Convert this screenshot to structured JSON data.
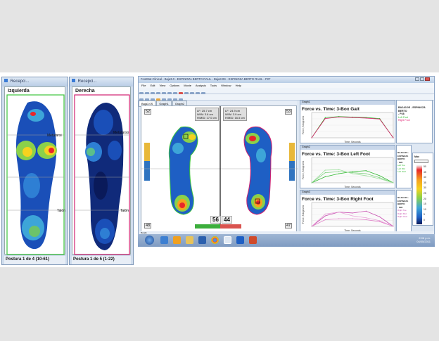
{
  "left_window": {
    "title": "Recepci...",
    "label": "Izquierda",
    "annotations": [
      "Metatarsi",
      "Talón"
    ],
    "status": "Postura 1 de 4 (10-61)"
  },
  "right_window": {
    "title": "Recepci...",
    "label": "Derecha",
    "annotations": [
      "Metatarso",
      "Talón"
    ],
    "status": "Postura 1 de 5 (1-22)"
  },
  "main_window": {
    "title": "FootMat Clinical - Baja3.0 - ESPINOZA BERTO RAUL - Baja3.0S - ESPINOZA BERTO RAUL - P27",
    "menu": [
      "File",
      "Edit",
      "View",
      "Options",
      "Movie",
      "Analysis",
      "Tools",
      "Window",
      "Help"
    ],
    "tabs": [
      "Baja3.0S",
      "Graph1",
      "Graph2"
    ],
    "sensors": [
      "52",
      "53",
      "48",
      "47"
    ],
    "measurements_left": [
      "LF: 25.7 cm",
      "W/W: 3.6 cm",
      "H/MID: 17.0 cm"
    ],
    "measurements_right": [
      "LF: 24.9 cm",
      "W/W: 3.9 cm",
      "H/MID: 16.5 cm"
    ],
    "ratio_left": "56",
    "ratio_right": "44",
    "status": "Ready",
    "scale_header": "Max",
    "scale_values": [
      "50",
      "45",
      "40",
      "35",
      "30",
      "25",
      "20",
      "15",
      "10",
      "5",
      "0"
    ],
    "clock": [
      "2:06 p.m.",
      "04/05/2011"
    ]
  },
  "charts": [
    {
      "window_title": "Graph1",
      "title": "Force vs. Time: 3-Box Gait",
      "ylabel": "Force, Kilograms",
      "xlabel": "Time, Seconds",
      "side_header": [
        "BAJA3.0S - ESPINOZA BERTO",
        "- P28"
      ],
      "legend": [
        "Left Foot",
        "Right Foot"
      ],
      "chart_data": {
        "type": "line",
        "x": [
          0,
          0.3,
          0.6,
          0.9,
          1.2,
          1.5,
          1.8
        ],
        "series": [
          {
            "name": "Left Foot",
            "values": [
              0,
              40,
              42,
              41,
              40,
              38,
              0
            ]
          },
          {
            "name": "Right Foot",
            "values": [
              0,
              38,
              41,
              40,
              39,
              37,
              0
            ]
          }
        ]
      }
    },
    {
      "window_title": "Graph2",
      "title": "Force vs. Time: 3-Box Left Foot",
      "ylabel": "Force, Kilograms",
      "xlabel": "Time, Seconds",
      "side_header": [
        "BAJA3.0S - ESPINOZA BERTO",
        "- P28"
      ],
      "legend": [
        "Left Toe",
        "Left Mid",
        "Left Heel"
      ],
      "chart_data": {
        "type": "line",
        "x": [
          0,
          0.3,
          0.6,
          0.9,
          1.2,
          1.5,
          1.8
        ],
        "series": [
          {
            "name": "Left Toe",
            "values": [
              0,
              12,
              18,
              22,
              24,
              14,
              0
            ]
          },
          {
            "name": "Left Mid",
            "values": [
              0,
              20,
              22,
              20,
              18,
              10,
              0
            ]
          },
          {
            "name": "Left Heel",
            "values": [
              0,
              25,
              26,
              18,
              14,
              8,
              0
            ]
          }
        ]
      }
    },
    {
      "window_title": "Graph3",
      "title": "Force vs. Time: 3-Box Right Foot",
      "ylabel": "Force, Kilograms",
      "xlabel": "Time, Seconds",
      "side_header": [
        "BAJA3.0S - ESPINOZA BERTO",
        "- P28"
      ],
      "legend": [
        "Right Toe",
        "Right Mid",
        "Right Heel"
      ],
      "chart_data": {
        "type": "line",
        "x": [
          0,
          0.3,
          0.6,
          0.9,
          1.2,
          1.5,
          1.8
        ],
        "series": [
          {
            "name": "Right Toe",
            "values": [
              0,
              22,
              30,
              28,
              32,
              20,
              0
            ]
          },
          {
            "name": "Right Mid",
            "values": [
              0,
              14,
              16,
              16,
              14,
              10,
              0
            ]
          },
          {
            "name": "Right Heel",
            "values": [
              0,
              26,
              30,
              22,
              18,
              12,
              0
            ]
          }
        ]
      }
    }
  ],
  "colors": {
    "left_border": "#3cc43c",
    "right_border": "#d02070",
    "series": [
      "#2db82d",
      "#e02070",
      "#c74db0"
    ]
  }
}
